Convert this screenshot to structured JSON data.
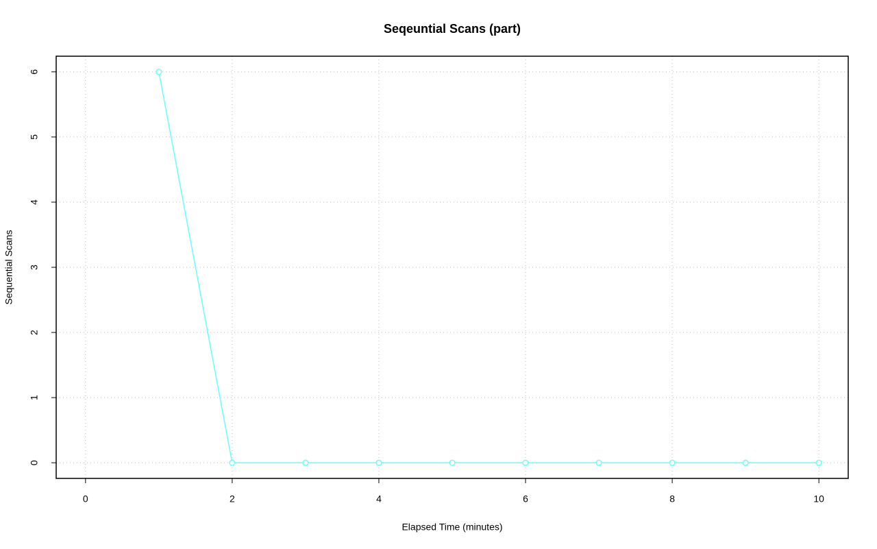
{
  "chart_data": {
    "type": "line",
    "title": "Seqeuntial Scans (part)",
    "x_label": "Elapsed Time (minutes)",
    "y_label": "Sequential Scans",
    "x": [
      1,
      2,
      3,
      4,
      5,
      6,
      7,
      8,
      9,
      10
    ],
    "series": [
      {
        "name": "Sequential Scans",
        "color": "#66ffff",
        "values": [
          6,
          0,
          0,
          0,
          0,
          0,
          0,
          0,
          0,
          0
        ]
      }
    ],
    "xlim": [
      -0.4,
      10.4
    ],
    "xticks": [
      0,
      2,
      4,
      6,
      8,
      10
    ],
    "ylim": [
      -0.24,
      6.24
    ],
    "yticks": [
      0,
      1,
      2,
      3,
      4,
      5,
      6
    ],
    "grid": true
  }
}
